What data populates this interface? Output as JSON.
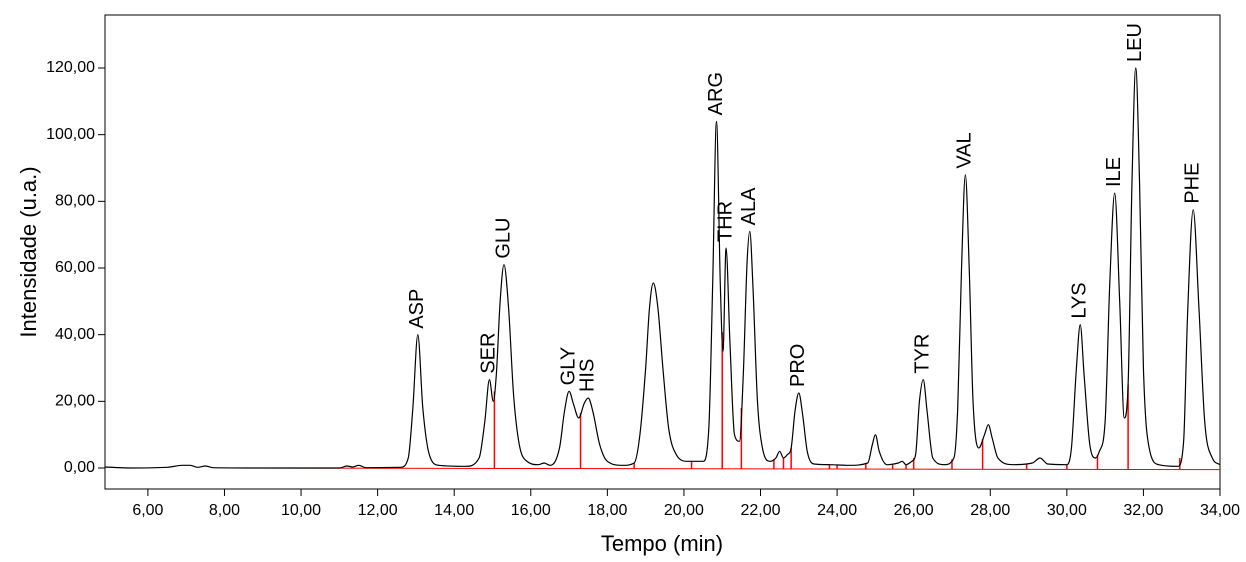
{
  "chart_data": {
    "type": "line",
    "x_label": "Tempo (min)",
    "y_label": "Intensidade (u.a.)",
    "xlim": [
      4.88,
      34
    ],
    "ylim": [
      -6.3,
      135.9
    ],
    "xticks": [
      {
        "value": 6,
        "label": "6,00"
      },
      {
        "value": 8,
        "label": "8,00"
      },
      {
        "value": 10,
        "label": "10,00"
      },
      {
        "value": 12,
        "label": "12,00"
      },
      {
        "value": 14,
        "label": "14,00"
      },
      {
        "value": 16,
        "label": "16,00"
      },
      {
        "value": 18,
        "label": "18,00"
      },
      {
        "value": 20,
        "label": "20,00"
      },
      {
        "value": 22,
        "label": "22,00"
      },
      {
        "value": 24,
        "label": "24,00"
      },
      {
        "value": 26,
        "label": "26,00"
      },
      {
        "value": 28,
        "label": "28,00"
      },
      {
        "value": 30,
        "label": "30,00"
      },
      {
        "value": 32,
        "label": "32,00"
      },
      {
        "value": 34,
        "label": "34,00"
      }
    ],
    "yticks": [
      {
        "value": 0,
        "label": "0,00"
      },
      {
        "value": 20,
        "label": "20,00"
      },
      {
        "value": 40,
        "label": "40,00"
      },
      {
        "value": 60,
        "label": "60,00"
      },
      {
        "value": 80,
        "label": "80,00"
      },
      {
        "value": 100,
        "label": "100,00"
      },
      {
        "value": 120,
        "label": "120,00"
      }
    ],
    "x": [
      4.88,
      5.5,
      6.5,
      6.9,
      7.1,
      7.3,
      7.5,
      7.7,
      9,
      11,
      11.2,
      11.35,
      11.5,
      11.7,
      12.6,
      12.8,
      12.92,
      13.05,
      13.18,
      13.35,
      13.6,
      14.3,
      14.65,
      14.8,
      14.92,
      15.02,
      15.1,
      15.2,
      15.3,
      15.42,
      15.55,
      15.7,
      15.9,
      16.2,
      16.35,
      16.5,
      16.75,
      16.88,
      17.0,
      17.12,
      17.25,
      17.4,
      17.5,
      17.62,
      17.8,
      18.0,
      18.4,
      18.7,
      18.85,
      19.0,
      19.1,
      19.2,
      19.32,
      19.45,
      19.6,
      19.8,
      20.1,
      20.5,
      20.65,
      20.75,
      20.85,
      20.95,
      21.02,
      21.1,
      21.2,
      21.32,
      21.45,
      21.55,
      21.65,
      21.72,
      21.8,
      21.92,
      22.05,
      22.25,
      22.4,
      22.5,
      22.6,
      22.7,
      22.8,
      22.9,
      23.0,
      23.1,
      23.22,
      23.4,
      23.8,
      24.3,
      24.8,
      24.92,
      25.0,
      25.1,
      25.3,
      25.6,
      25.7,
      25.8,
      25.95,
      26.05,
      26.15,
      26.25,
      26.35,
      26.5,
      26.8,
      27.05,
      27.15,
      27.25,
      27.35,
      27.45,
      27.55,
      27.7,
      27.85,
      27.95,
      28.05,
      28.2,
      28.6,
      29.1,
      29.3,
      29.5,
      30.0,
      30.12,
      30.25,
      30.35,
      30.45,
      30.6,
      30.75,
      30.85,
      31.0,
      31.12,
      31.25,
      31.38,
      31.5,
      31.6,
      31.7,
      31.8,
      31.9,
      32.0,
      32.15,
      32.4,
      32.9,
      33.05,
      33.15,
      33.3,
      33.45,
      33.6,
      33.8,
      34.0
    ],
    "series": [
      {
        "color": "#000000",
        "values": [
          0.3,
          0,
          0.2,
          0.8,
          0.8,
          0.2,
          0.6,
          0.1,
          0,
          0,
          0.6,
          0.3,
          0.8,
          0.1,
          0.2,
          3,
          18,
          40,
          18,
          4,
          0.8,
          0.5,
          3,
          14,
          26.5,
          20,
          28,
          50,
          61,
          48,
          22,
          7,
          2,
          1,
          1.5,
          0.8,
          6,
          17,
          23,
          19,
          15,
          19.5,
          21,
          17,
          7,
          2,
          0.8,
          1.5,
          10,
          30,
          48,
          55.5,
          48,
          30,
          12,
          4,
          2,
          2,
          12,
          55,
          104,
          55,
          35,
          66,
          38,
          10,
          8,
          28,
          62,
          71,
          55,
          20,
          6,
          2,
          3,
          5,
          3,
          4,
          6,
          17,
          22.5,
          16,
          5,
          1.2,
          1,
          0.8,
          1.5,
          7,
          10,
          5,
          1,
          1.5,
          2,
          1,
          2,
          4,
          20,
          26.5,
          17,
          3,
          1,
          3,
          18,
          60,
          88,
          60,
          20,
          6,
          10,
          13,
          9,
          3,
          1,
          1.5,
          3,
          1.2,
          1,
          6,
          30,
          43,
          28,
          7,
          3,
          5,
          14,
          55,
          82.5,
          50,
          15,
          25,
          85,
          120,
          85,
          30,
          6,
          1,
          0.5,
          8,
          45,
          77.5,
          48,
          14,
          3,
          1
        ]
      }
    ],
    "baseline": {
      "color": "#ff0000",
      "x": [
        8.5,
        34
      ],
      "values": [
        0,
        -0.5
      ]
    },
    "drop_lines": [
      15.05,
      17.3,
      18.7,
      20.2,
      21.0,
      21.5,
      22.35,
      22.6,
      22.8,
      23.8,
      24.0,
      24.75,
      25.45,
      25.8,
      26.0,
      27.0,
      27.8,
      28.95,
      30.0,
      30.8,
      31.6,
      32.95
    ],
    "peaks": [
      {
        "label": "ASP",
        "x": 13.05,
        "y": 40
      },
      {
        "label": "SER",
        "x": 14.92,
        "y": 26.5
      },
      {
        "label": "GLU",
        "x": 15.3,
        "y": 61
      },
      {
        "label": "GLY",
        "x": 17.0,
        "y": 23
      },
      {
        "label": "HIS",
        "x": 17.5,
        "y": 21
      },
      {
        "label": "ARG",
        "x": 20.85,
        "y": 104
      },
      {
        "label": "THR",
        "x": 21.1,
        "y": 66
      },
      {
        "label": "ALA",
        "x": 21.72,
        "y": 71
      },
      {
        "label": "PRO",
        "x": 23.0,
        "y": 22.5
      },
      {
        "label": "TYR",
        "x": 26.25,
        "y": 26.5
      },
      {
        "label": "VAL",
        "x": 27.35,
        "y": 88
      },
      {
        "label": "LYS",
        "x": 30.35,
        "y": 43
      },
      {
        "label": "ILE",
        "x": 31.25,
        "y": 82.5
      },
      {
        "label": "LEU",
        "x": 31.8,
        "y": 120
      },
      {
        "label": "PHE",
        "x": 33.3,
        "y": 77.5
      }
    ]
  }
}
